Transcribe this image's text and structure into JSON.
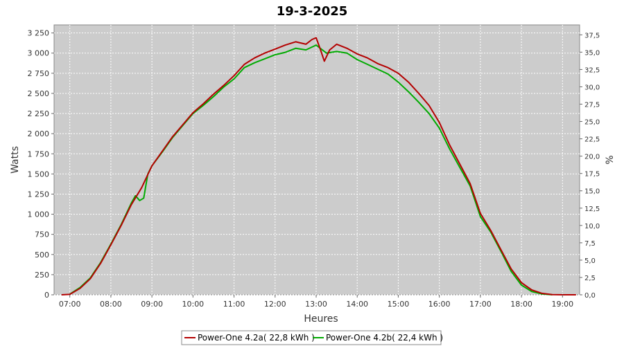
{
  "chart_data": {
    "type": "line",
    "title": "19-3-2025",
    "xlabel": "Heures",
    "ylabel": "Watts",
    "y2label": "%",
    "xlim": [
      6.617,
      19.417
    ],
    "ylim": [
      0,
      3350
    ],
    "y2lim": [
      0,
      38.93
    ],
    "x_ticks": [
      {
        "v": 7,
        "label": "07:00"
      },
      {
        "v": 8,
        "label": "08:00"
      },
      {
        "v": 9,
        "label": "09:00"
      },
      {
        "v": 10,
        "label": "10:00"
      },
      {
        "v": 11,
        "label": "11:00"
      },
      {
        "v": 12,
        "label": "12:00"
      },
      {
        "v": 13,
        "label": "13:00"
      },
      {
        "v": 14,
        "label": "14:00"
      },
      {
        "v": 15,
        "label": "15:00"
      },
      {
        "v": 16,
        "label": "16:00"
      },
      {
        "v": 17,
        "label": "17:00"
      },
      {
        "v": 18,
        "label": "18:00"
      },
      {
        "v": 19,
        "label": "19:00"
      }
    ],
    "y_ticks": [
      {
        "v": 0,
        "label": "0"
      },
      {
        "v": 250,
        "label": "250"
      },
      {
        "v": 500,
        "label": "500"
      },
      {
        "v": 750,
        "label": "750"
      },
      {
        "v": 1000,
        "label": "1 000"
      },
      {
        "v": 1250,
        "label": "1 250"
      },
      {
        "v": 1500,
        "label": "1 500"
      },
      {
        "v": 1750,
        "label": "1 750"
      },
      {
        "v": 2000,
        "label": "2 000"
      },
      {
        "v": 2250,
        "label": "2 250"
      },
      {
        "v": 2500,
        "label": "2 500"
      },
      {
        "v": 2750,
        "label": "2 750"
      },
      {
        "v": 3000,
        "label": "3 000"
      },
      {
        "v": 3250,
        "label": "3 250"
      }
    ],
    "y2_ticks": [
      {
        "v": 0,
        "label": "0,0"
      },
      {
        "v": 2.5,
        "label": "2,5"
      },
      {
        "v": 5,
        "label": "5,0"
      },
      {
        "v": 7.5,
        "label": "7,5"
      },
      {
        "v": 10,
        "label": "10,0"
      },
      {
        "v": 12.5,
        "label": "12,5"
      },
      {
        "v": 15,
        "label": "15,0"
      },
      {
        "v": 17.5,
        "label": "17,5"
      },
      {
        "v": 20,
        "label": "20,0"
      },
      {
        "v": 22.5,
        "label": "22,5"
      },
      {
        "v": 25,
        "label": "25,0"
      },
      {
        "v": 27.5,
        "label": "27,5"
      },
      {
        "v": 30,
        "label": "30,0"
      },
      {
        "v": 32.5,
        "label": "32,5"
      },
      {
        "v": 35,
        "label": "35,0"
      },
      {
        "v": 37.5,
        "label": "37,5"
      }
    ],
    "grid": true,
    "legend_position": "bottom-center",
    "plot_background": "#cccccc",
    "series": [
      {
        "name": "Power-One 4.2a( 22,8 kWh )",
        "color": "#b40000",
        "points": [
          [
            6.8,
            0
          ],
          [
            7.0,
            5
          ],
          [
            7.25,
            80
          ],
          [
            7.5,
            200
          ],
          [
            7.75,
            390
          ],
          [
            8.0,
            620
          ],
          [
            8.25,
            860
          ],
          [
            8.5,
            1120
          ],
          [
            8.75,
            1330
          ],
          [
            9.0,
            1600
          ],
          [
            9.25,
            1780
          ],
          [
            9.5,
            1960
          ],
          [
            9.75,
            2110
          ],
          [
            10.0,
            2260
          ],
          [
            10.25,
            2370
          ],
          [
            10.5,
            2490
          ],
          [
            10.75,
            2600
          ],
          [
            11.0,
            2720
          ],
          [
            11.25,
            2860
          ],
          [
            11.5,
            2940
          ],
          [
            11.75,
            3000
          ],
          [
            12.0,
            3050
          ],
          [
            12.25,
            3100
          ],
          [
            12.5,
            3140
          ],
          [
            12.75,
            3110
          ],
          [
            12.9,
            3170
          ],
          [
            13.0,
            3190
          ],
          [
            13.1,
            3050
          ],
          [
            13.2,
            2900
          ],
          [
            13.33,
            3040
          ],
          [
            13.5,
            3110
          ],
          [
            13.75,
            3060
          ],
          [
            14.0,
            2990
          ],
          [
            14.25,
            2940
          ],
          [
            14.5,
            2870
          ],
          [
            14.75,
            2820
          ],
          [
            15.0,
            2750
          ],
          [
            15.25,
            2640
          ],
          [
            15.5,
            2500
          ],
          [
            15.75,
            2350
          ],
          [
            16.0,
            2140
          ],
          [
            16.25,
            1860
          ],
          [
            16.5,
            1620
          ],
          [
            16.75,
            1380
          ],
          [
            17.0,
            1010
          ],
          [
            17.25,
            800
          ],
          [
            17.5,
            560
          ],
          [
            17.75,
            320
          ],
          [
            18.0,
            150
          ],
          [
            18.25,
            60
          ],
          [
            18.5,
            18
          ],
          [
            18.75,
            2
          ],
          [
            19.0,
            0
          ],
          [
            19.33,
            0
          ]
        ]
      },
      {
        "name": "Power-One 4.2b( 22,4 kWh )",
        "color": "#00aa00",
        "points": [
          [
            7.0,
            8
          ],
          [
            7.25,
            90
          ],
          [
            7.5,
            210
          ],
          [
            7.75,
            400
          ],
          [
            8.0,
            630
          ],
          [
            8.25,
            870
          ],
          [
            8.5,
            1140
          ],
          [
            8.6,
            1230
          ],
          [
            8.7,
            1170
          ],
          [
            8.8,
            1200
          ],
          [
            8.9,
            1500
          ],
          [
            9.0,
            1600
          ],
          [
            9.25,
            1770
          ],
          [
            9.5,
            1950
          ],
          [
            9.75,
            2100
          ],
          [
            10.0,
            2250
          ],
          [
            10.25,
            2350
          ],
          [
            10.5,
            2460
          ],
          [
            10.75,
            2580
          ],
          [
            11.0,
            2680
          ],
          [
            11.25,
            2820
          ],
          [
            11.5,
            2880
          ],
          [
            11.75,
            2930
          ],
          [
            12.0,
            2980
          ],
          [
            12.25,
            3010
          ],
          [
            12.5,
            3060
          ],
          [
            12.75,
            3040
          ],
          [
            13.0,
            3100
          ],
          [
            13.25,
            3000
          ],
          [
            13.5,
            3020
          ],
          [
            13.75,
            3000
          ],
          [
            14.0,
            2920
          ],
          [
            14.25,
            2860
          ],
          [
            14.5,
            2800
          ],
          [
            14.75,
            2740
          ],
          [
            15.0,
            2640
          ],
          [
            15.25,
            2520
          ],
          [
            15.5,
            2390
          ],
          [
            15.75,
            2250
          ],
          [
            16.0,
            2070
          ],
          [
            16.25,
            1810
          ],
          [
            16.5,
            1580
          ],
          [
            16.75,
            1350
          ],
          [
            17.0,
            970
          ],
          [
            17.25,
            780
          ],
          [
            17.5,
            540
          ],
          [
            17.75,
            290
          ],
          [
            18.0,
            120
          ],
          [
            18.25,
            40
          ],
          [
            18.5,
            10
          ],
          [
            18.75,
            0
          ]
        ]
      }
    ]
  }
}
